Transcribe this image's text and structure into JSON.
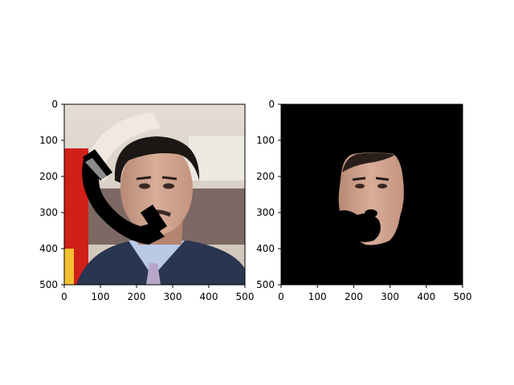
{
  "figure": {
    "background": "#ffffff",
    "axis_color": "#000000"
  },
  "chart_data": [
    {
      "type": "image",
      "title": "",
      "xlabel": "",
      "ylabel": "",
      "xlim": [
        0,
        500
      ],
      "ylim": [
        500,
        0
      ],
      "xticks": [
        0,
        100,
        200,
        300,
        400,
        500
      ],
      "yticks": [
        0,
        100,
        200,
        300,
        400,
        500
      ],
      "grid": false,
      "legend": "none",
      "content": "photograph of a man in a suit and tie with a black telephone-handset shape overlaid on the left side of his face",
      "colors": {
        "sky": "#d9d2c8",
        "wall": "#8a7a72",
        "flag_red": "#d11f1a",
        "flag_yellow": "#f2c230",
        "suit": "#2a3550",
        "shirt": "#b9c9e6",
        "skin": "#c99b86",
        "hair": "#1b1714",
        "overlay": "#000000"
      }
    },
    {
      "type": "image",
      "title": "",
      "xlabel": "",
      "ylabel": "",
      "xlim": [
        0,
        500
      ],
      "ylim": [
        500,
        0
      ],
      "xticks": [
        0,
        100,
        200,
        300,
        400,
        500
      ],
      "yticks": [
        0,
        100,
        200,
        300,
        400,
        500
      ],
      "grid": false,
      "legend": "none",
      "content": "masked face segment on a black background, with the lower-left part of the face occluded by black blobs",
      "colors": {
        "background": "#000000",
        "skin": "#c99b86",
        "hair": "#1b1714"
      }
    }
  ]
}
